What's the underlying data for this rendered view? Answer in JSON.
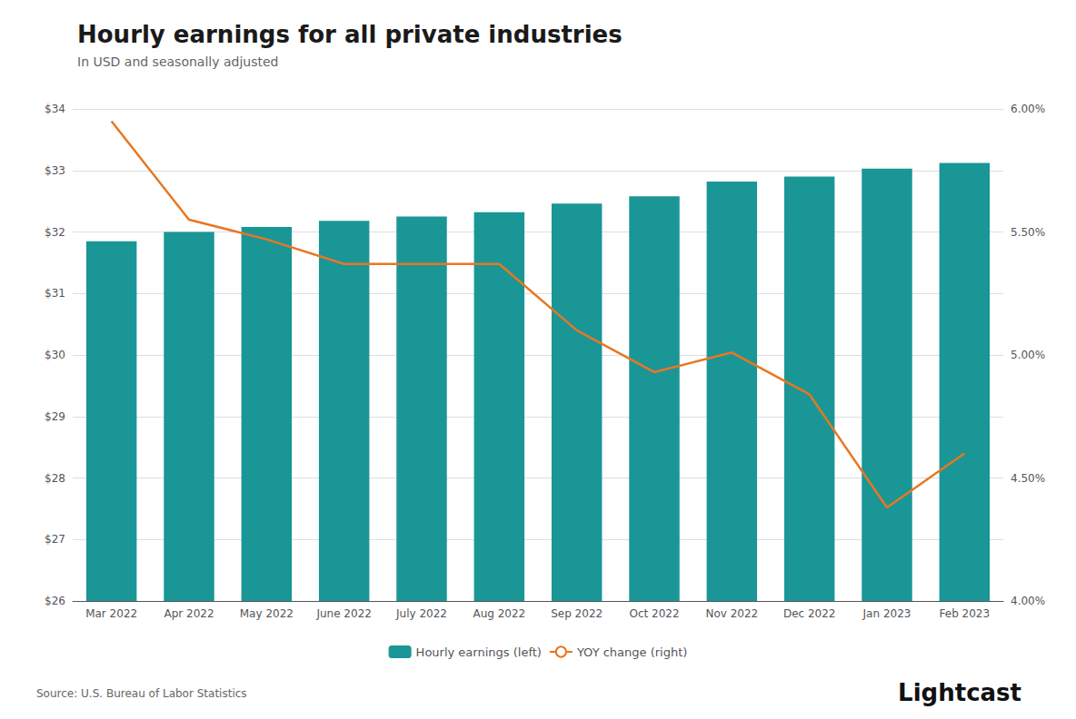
{
  "chart_data": {
    "type": "bar",
    "title": "Hourly earnings for all private industries",
    "subtitle": "In USD and seasonally adjusted",
    "annotations": [
      "Source: U.S. Bureau of Labor Statistics",
      "Lightcast"
    ],
    "categories": [
      "Mar 2022",
      "Apr 2022",
      "May 2022",
      "June 2022",
      "July 2022",
      "Aug 2022",
      "Sep 2022",
      "Oct 2022",
      "Nov 2022",
      "Dec 2022",
      "Jan 2023",
      "Feb 2023"
    ],
    "series": [
      {
        "name": "Hourly earnings (left)",
        "type": "bar",
        "color": "#1a9696",
        "values": [
          31.85,
          32.0,
          32.08,
          32.18,
          32.25,
          32.32,
          32.46,
          32.58,
          32.82,
          32.9,
          33.03,
          33.12
        ]
      },
      {
        "name": "YOY change (right)",
        "type": "line",
        "color": "#e87722",
        "axis": "y2",
        "values": [
          5.95,
          5.55,
          5.47,
          5.37,
          5.37,
          5.37,
          5.1,
          4.93,
          5.01,
          4.84,
          4.38,
          4.6
        ]
      }
    ],
    "ylim": [
      26,
      34
    ],
    "yticks": [
      {
        "value": 26,
        "label": "$26"
      },
      {
        "value": 27,
        "label": "$27"
      },
      {
        "value": 28,
        "label": "$28"
      },
      {
        "value": 29,
        "label": "$29"
      },
      {
        "value": 30,
        "label": "$30"
      },
      {
        "value": 31,
        "label": "$31"
      },
      {
        "value": 32,
        "label": "$32"
      },
      {
        "value": 33,
        "label": "$33"
      },
      {
        "value": 34,
        "label": "$34"
      }
    ],
    "y2lim": [
      4.0,
      6.0
    ],
    "y2ticks": [
      {
        "value": 4.0,
        "label": "4.00%"
      },
      {
        "value": 4.5,
        "label": "4.50%"
      },
      {
        "value": 5.0,
        "label": "5.00%"
      },
      {
        "value": 5.5,
        "label": "5.50%"
      },
      {
        "value": 6.0,
        "label": "6.00%"
      }
    ],
    "grid": true,
    "legend": "bottom"
  }
}
